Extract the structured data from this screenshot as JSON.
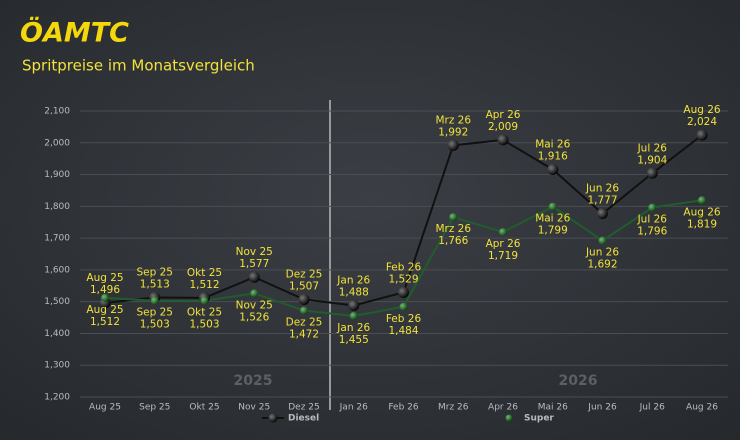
{
  "chart_data": {
    "type": "line",
    "logo": "ÖAMTC",
    "title": "Spritpreise im Monatsvergleich",
    "annotations": [
      "2025",
      "2026"
    ],
    "categories": [
      "Aug 25",
      "Sep 25",
      "Okt 25",
      "Nov 25",
      "Dez 25",
      "Jan 26",
      "Feb 26",
      "Mrz 26",
      "Apr 26",
      "Mai 26",
      "Jun 26",
      "Jul 26",
      "Aug 26"
    ],
    "series": [
      {
        "name": "Diesel",
        "color": "#111111",
        "values": [
          1.496,
          1.513,
          1.512,
          1.577,
          1.507,
          1.488,
          1.529,
          1.992,
          2.009,
          1.916,
          1.777,
          1.904,
          2.024
        ],
        "value_labels": [
          "1,496",
          "1,513",
          "1,512",
          "1,577",
          "1,507",
          "1,488",
          "1,529",
          "1,992",
          "2,009",
          "1,916",
          "1,777",
          "1,904",
          "2,024"
        ]
      },
      {
        "name": "Super",
        "color": "#1f5e2c",
        "values": [
          1.512,
          1.503,
          1.503,
          1.526,
          1.472,
          1.455,
          1.484,
          1.766,
          1.719,
          1.799,
          1.692,
          1.796,
          1.819
        ],
        "value_labels": [
          "1,512",
          "1,503",
          "1,503",
          "1,526",
          "1,472",
          "1,455",
          "1,484",
          "1,766",
          "1,719",
          "1,799",
          "1,692",
          "1,796",
          "1,819"
        ]
      }
    ],
    "ylim": [
      1.2,
      2.1
    ],
    "yticks": [
      {
        "value": 1.2,
        "label": "1,200"
      },
      {
        "value": 1.3,
        "label": "1,300"
      },
      {
        "value": 1.4,
        "label": "1,400"
      },
      {
        "value": 1.5,
        "label": "1,500"
      },
      {
        "value": 1.6,
        "label": "1,600"
      },
      {
        "value": 1.7,
        "label": "1,700"
      },
      {
        "value": 1.8,
        "label": "1,800"
      },
      {
        "value": 1.9,
        "label": "1,900"
      },
      {
        "value": 2.0,
        "label": "2,000"
      },
      {
        "value": 2.1,
        "label": "2,100"
      }
    ],
    "grid": true
  }
}
